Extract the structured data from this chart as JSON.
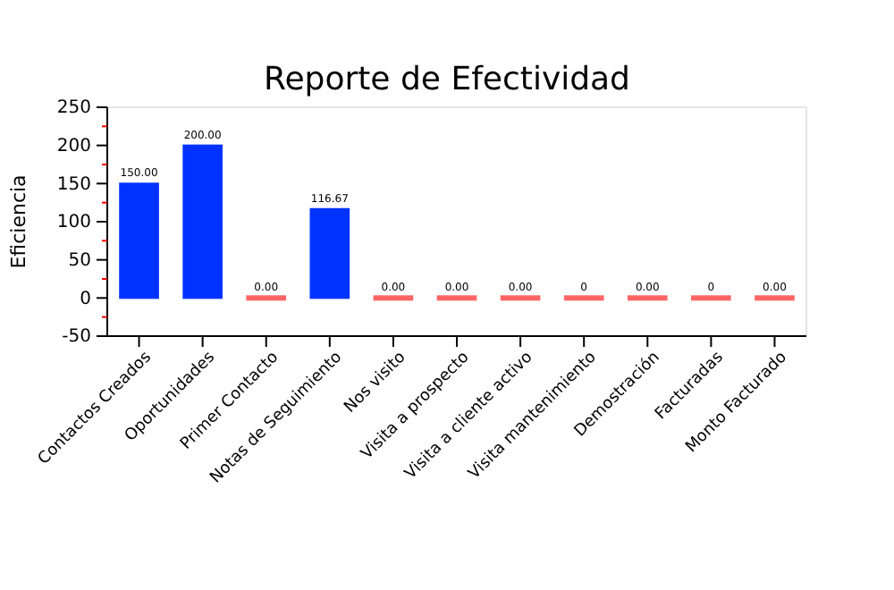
{
  "chart_data": {
    "type": "bar",
    "title": "Reporte de Efectividad",
    "ylabel": "Eficiencia",
    "categories": [
      "Contactos Creados",
      "Oportunidades",
      "Primer Contacto",
      "Notas de Seguimiento",
      "Nos visito",
      "Visita a prospecto",
      "Visita a cliente activo",
      "Visita mantenimiento",
      "Demostración",
      "Facturadas",
      "Monto Facturado"
    ],
    "values": [
      150,
      200,
      0,
      116.67,
      0,
      0,
      0,
      0,
      0,
      0,
      0
    ],
    "value_labels": [
      "150.00",
      "200.00",
      "0.00",
      "116.67",
      "0.00",
      "0.00",
      "0.00",
      "0",
      "0.00",
      "0",
      "0.00"
    ],
    "colors": [
      "#0033ff",
      "#0033ff",
      "#ff6666",
      "#0033ff",
      "#ff6666",
      "#ff6666",
      "#ff6666",
      "#ff6666",
      "#ff6666",
      "#ff6666",
      "#ff6666"
    ],
    "ylim": [
      -50,
      250
    ],
    "yticks": [
      -50,
      {
        "value": -25,
        "label": null
      },
      0,
      {
        "value": 25,
        "label": null
      },
      50,
      {
        "value": 75,
        "label": null
      },
      100,
      {
        "value": 125,
        "label": null
      },
      150,
      {
        "value": 175,
        "label": null
      },
      200,
      {
        "value": 225,
        "label": null
      },
      250
    ],
    "grid": false
  }
}
